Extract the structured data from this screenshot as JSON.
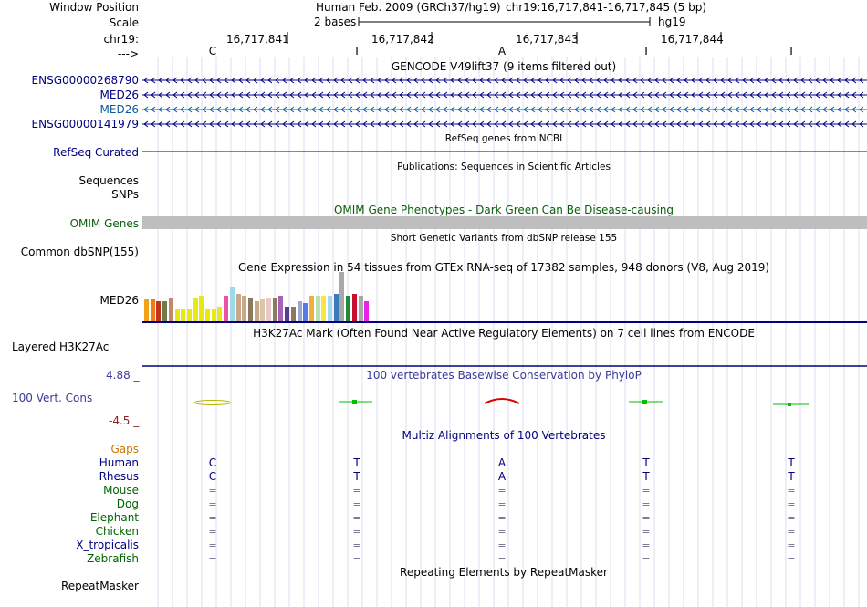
{
  "header": {
    "window_position_label": "Window Position",
    "assembly_text": "Human Feb. 2009 (GRCh37/hg19)",
    "region_text": "chr19:16,717,841-16,717,845 (5 bp)",
    "scale_label": "Scale",
    "scale_value": "2 bases",
    "scale_db": "hg19",
    "chrom_label": "chr19:",
    "positions": [
      "16,717,841",
      "16,717,842",
      "16,717,843",
      "16,717,844"
    ],
    "strand_label": "--->",
    "bases": [
      "C",
      "T",
      "A",
      "T",
      "T"
    ]
  },
  "tracks": {
    "gencode": {
      "title": "GENCODE V49lift37 (9 items filtered out)",
      "items": [
        "ENSG00000268790",
        "MED26",
        "MED26",
        "ENSG00000141979"
      ]
    },
    "refseq": {
      "title": "RefSeq genes from NCBI",
      "label": "RefSeq Curated"
    },
    "publications": {
      "title": "Publications: Sequences in Scientific Articles",
      "label1": "Sequences",
      "label2": "SNPs"
    },
    "omim": {
      "title": "OMIM Gene Phenotypes - Dark Green Can Be Disease-causing",
      "label": "OMIM Genes"
    },
    "dbsnp": {
      "title": "Short Genetic Variants from dbSNP release 155",
      "label": "Common dbSNP(155)"
    },
    "gtex": {
      "title": "Gene Expression in 54 tissues from GTEx RNA-seq of 17382 samples, 948 donors (V8, Aug 2019)",
      "label": "MED26"
    },
    "h3k27ac": {
      "title": "H3K27Ac Mark (Often Found Near Active Regulatory Elements) on 7 cell lines from ENCODE",
      "label": "Layered H3K27Ac"
    },
    "conservation": {
      "title": "100 vertebrates Basewise Conservation by PhyloP",
      "label": "100 Vert. Cons",
      "max_label": "4.88 _",
      "min_label": "-4.5 _"
    },
    "multiz": {
      "title": "Multiz Alignments of 100 Vertebrates",
      "gaps_label": "Gaps",
      "species": [
        {
          "name": "Human",
          "row": [
            "C",
            "T",
            "A",
            "T",
            "T"
          ]
        },
        {
          "name": "Rhesus",
          "row": [
            "C",
            "T",
            "A",
            "T",
            "T"
          ]
        },
        {
          "name": "Mouse",
          "row": [
            "=",
            "=",
            "=",
            "=",
            "="
          ]
        },
        {
          "name": "Dog",
          "row": [
            "=",
            "=",
            "=",
            "=",
            "="
          ]
        },
        {
          "name": "Elephant",
          "row": [
            "=",
            "=",
            "=",
            "=",
            "="
          ]
        },
        {
          "name": "Chicken",
          "row": [
            "=",
            "=",
            "=",
            "=",
            "="
          ]
        },
        {
          "name": "X_tropicalis",
          "row": [
            "=",
            "=",
            "=",
            "=",
            "="
          ]
        },
        {
          "name": "Zebrafish",
          "row": [
            "=",
            "=",
            "=",
            "=",
            "="
          ]
        }
      ]
    },
    "repeatmasker": {
      "title": "Repeating Elements by RepeatMasker",
      "label": "RepeatMasker"
    }
  },
  "colors": {
    "navy": "#000080",
    "gencode_blue": "#0b5b9a",
    "omim_green": "#0a5d0a",
    "gaps_orange": "#c87800",
    "species_green": "#006400",
    "cons_blue": "#3a3a9a",
    "min_red": "#8b2222",
    "grid": "#dcdcf0",
    "omim_bar": "#bebebe"
  }
}
